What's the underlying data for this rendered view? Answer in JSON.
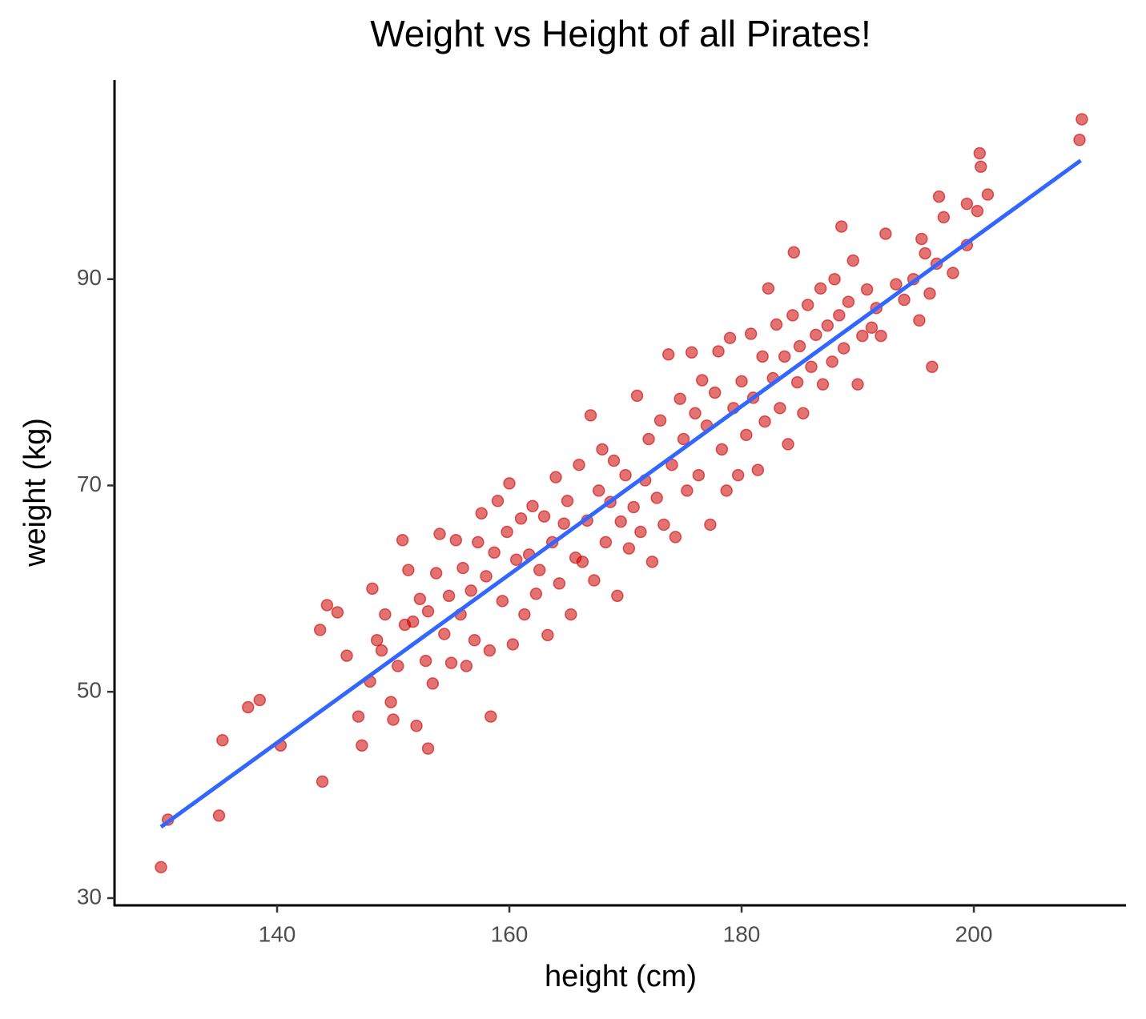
{
  "chart_data": {
    "type": "scatter",
    "title": "Weight vs Height of all Pirates!",
    "x_label": "height (cm)",
    "y_label": "weight (kg)",
    "x": [
      130,
      130.6,
      135,
      135.3,
      137.5,
      138.5,
      140.3,
      143.9,
      143.7,
      144.3,
      145.2,
      153,
      158.4,
      196.4,
      209.3,
      209.1,
      200.5,
      200.6,
      201.2,
      197,
      197.4,
      199.4,
      188.6,
      192.4,
      195.5,
      184.5,
      146,
      147,
      147.3,
      148,
      148.2,
      148.6,
      149,
      149.3,
      149.8,
      150,
      150.4,
      150.8,
      151,
      151.3,
      151.7,
      152,
      152.3,
      152.8,
      153,
      153.4,
      153.7,
      154,
      154.4,
      154.8,
      155,
      155.4,
      155.8,
      156,
      156.3,
      156.7,
      157,
      157.3,
      157.6,
      158,
      158.3,
      158.7,
      159,
      159.4,
      159.8,
      160,
      160.3,
      160.6,
      161,
      161.3,
      161.7,
      162,
      162.3,
      162.6,
      163,
      163.3,
      163.7,
      164,
      164.3,
      164.7,
      165,
      165.3,
      165.7,
      166,
      166.3,
      166.7,
      167,
      167.3,
      167.7,
      168,
      168.3,
      168.7,
      169,
      169.3,
      169.6,
      170,
      170.3,
      170.7,
      171,
      171.3,
      171.7,
      172,
      172.3,
      172.7,
      173,
      173.3,
      173.7,
      174,
      174.3,
      174.7,
      175,
      175.3,
      175.7,
      176,
      176.3,
      176.6,
      177,
      177.3,
      177.7,
      178,
      178.3,
      178.7,
      179,
      179.3,
      179.7,
      180,
      180.4,
      180.8,
      181,
      181.4,
      181.8,
      182,
      182.3,
      182.7,
      183,
      183.3,
      183.7,
      184,
      184.4,
      184.8,
      185,
      185.3,
      185.7,
      186,
      186.4,
      186.8,
      187,
      187.4,
      187.8,
      188,
      188.4,
      188.8,
      189.2,
      189.6,
      190,
      190.4,
      190.8,
      191.2,
      191.6,
      192,
      193.3,
      194,
      194.8,
      195.3,
      195.8,
      196.2,
      196.8,
      198.2,
      199.4,
      200.3
    ],
    "y": [
      33,
      37.6,
      38,
      45.3,
      48.5,
      49.2,
      44.8,
      41.3,
      56,
      58.4,
      57.7,
      44.5,
      47.6,
      81.5,
      105.5,
      103.5,
      102.2,
      100.9,
      98.2,
      98,
      96,
      97.3,
      95.1,
      94.4,
      93.9,
      92.6,
      53.5,
      47.6,
      44.8,
      51,
      60,
      55,
      54,
      57.5,
      49,
      47.3,
      52.5,
      64.7,
      56.5,
      61.8,
      56.8,
      46.7,
      59,
      53,
      57.8,
      50.8,
      61.5,
      65.3,
      55.6,
      59.3,
      52.8,
      64.7,
      57.5,
      62,
      52.5,
      59.8,
      55,
      64.5,
      67.3,
      61.2,
      54,
      63.5,
      68.5,
      58.8,
      65.5,
      70.2,
      54.6,
      62.8,
      66.8,
      57.5,
      63.3,
      68,
      59.5,
      61.8,
      67,
      55.5,
      64.5,
      70.8,
      60.5,
      66.3,
      68.5,
      57.5,
      63,
      72,
      62.6,
      66.6,
      76.8,
      60.8,
      69.5,
      73.5,
      64.5,
      68.4,
      72.4,
      59.3,
      66.5,
      71,
      63.9,
      67.9,
      78.7,
      65.5,
      70.5,
      74.5,
      62.6,
      68.8,
      76.3,
      66.2,
      82.7,
      72,
      65,
      78.4,
      74.5,
      69.5,
      82.9,
      77,
      71,
      80.2,
      75.8,
      66.2,
      79,
      83,
      73.5,
      69.5,
      84.3,
      77.5,
      71,
      80.1,
      74.9,
      84.7,
      78.5,
      71.5,
      82.5,
      76.2,
      89.1,
      80.4,
      85.6,
      77.5,
      82.5,
      74,
      86.5,
      80,
      83.5,
      77,
      87.5,
      81.5,
      84.6,
      89.1,
      79.8,
      85.5,
      82,
      90,
      86.5,
      83.3,
      87.8,
      91.8,
      79.8,
      84.5,
      89,
      85.3,
      87.2,
      84.5,
      89.5,
      88,
      90,
      86,
      92.5,
      88.6,
      91.5,
      90.6,
      93.3,
      96.6
    ],
    "color": "#cc0000",
    "fit": {
      "x": [
        130,
        209.2
      ],
      "y": [
        36.9,
        101.5
      ],
      "color": "#3366ff"
    },
    "xlim": [
      126,
      213.1
    ],
    "ylim": [
      29.3,
      109.3
    ],
    "xticks": [
      140,
      160,
      180,
      200
    ],
    "yticks": [
      30,
      50,
      70,
      90
    ],
    "grid": false
  }
}
